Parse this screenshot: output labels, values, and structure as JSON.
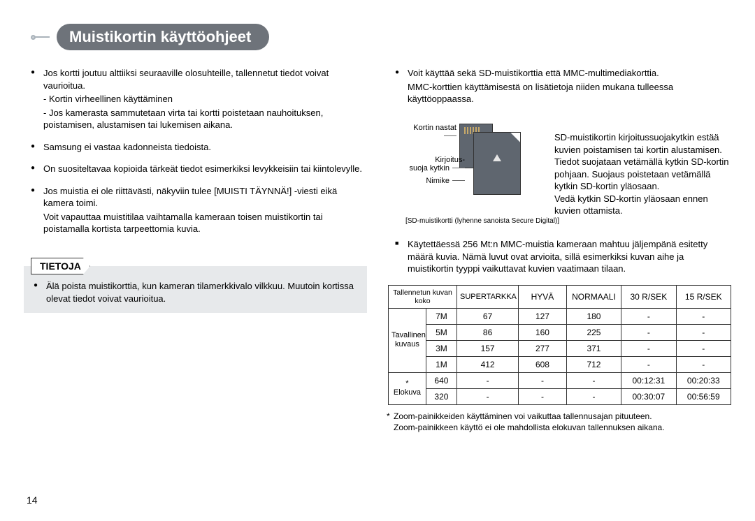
{
  "title": "Muistikortin käyttöohjeet",
  "left": {
    "b1": "Jos kortti joutuu alttiiksi seuraaville olosuhteille, tallennetut tiedot voivat vaurioitua.",
    "b1s1": "- Kortin virheellinen käyttäminen",
    "b1s2": "- Jos kamerasta sammutetaan virta tai kortti poistetaan nauhoituksen, poistamisen, alustamisen tai lukemisen aikana.",
    "b2": "Samsung ei vastaa kadonneista tiedoista.",
    "b3": "On suositeltavaa kopioida tärkeät tiedot esimerkiksi levykkeisiin tai kiintolevylle.",
    "b4a": "Jos muistia ei ole riittävästi, näkyviin tulee [MUISTI TÄYNNÄ!] -viesti eikä kamera toimi.",
    "b4b": "Voit vapauttaa muistitilaa vaihtamalla kameraan toisen muistikortin tai poistamalla kortista tarpeettomia kuvia."
  },
  "tietoja": {
    "label": "TIETOJA",
    "text": "Älä poista muistikorttia, kun kameran tilamerkkivalo vilkkuu. Muutoin kortissa olevat tiedot voivat vaurioitua."
  },
  "right_top": {
    "r1a": "Voit käyttää sekä SD-muistikorttia että MMC-multimediakorttia.",
    "r1b": "MMC-korttien käyttämisestä on lisätietoja niiden mukana tulleessa käyttöoppaassa."
  },
  "sd": {
    "label_pins": "Kortin nastat",
    "label_switch": "Kirjoitus-\nsuoja kytkin",
    "label_nimike": "Nimike",
    "caption": "[SD-muistikortti (lyhenne sanoista Secure Digital)]",
    "text": "SD-muistikortin kirjoitussuojakytkin estää kuvien poistamisen tai kortin alustamisen.\nTiedot suojataan vetämällä kytkin SD-kortin pohjaan. Suojaus poistetaan vetämällä kytkin SD-kortin yläosaan.\nVedä kytkin SD-kortin yläosaan ennen kuvien ottamista."
  },
  "mid": {
    "p": "Käytettäessä 256 Mt:n MMC-muistia kameraan mahtuu jäljempänä esitetty määrä kuvia. Nämä luvut ovat arvioita, sillä esimerkiksi kuvan aihe ja muistikortin tyyppi vaikuttavat kuvien vaatimaan tilaan."
  },
  "table": {
    "h_size": "Tallennetun kuvan koko",
    "h_super": "SUPERTARKKA",
    "h_hyva": "HYVÄ",
    "h_norm": "NORMAALI",
    "h_30": "30 R/SEK",
    "h_15": "15 R/SEK",
    "g_still": "Tavallinen kuvaus",
    "g_movie": "* Elokuva",
    "rows_still": [
      {
        "size": "7M",
        "c1": "67",
        "c2": "127",
        "c3": "180",
        "c4": "-",
        "c5": "-"
      },
      {
        "size": "5M",
        "c1": "86",
        "c2": "160",
        "c3": "225",
        "c4": "-",
        "c5": "-"
      },
      {
        "size": "3M",
        "c1": "157",
        "c2": "277",
        "c3": "371",
        "c4": "-",
        "c5": "-"
      },
      {
        "size": "1M",
        "c1": "412",
        "c2": "608",
        "c3": "712",
        "c4": "-",
        "c5": "-"
      }
    ],
    "rows_movie": [
      {
        "size": "640",
        "c1": "-",
        "c2": "-",
        "c3": "-",
        "c4": "00:12:31",
        "c5": "00:20:33"
      },
      {
        "size": "320",
        "c1": "-",
        "c2": "-",
        "c3": "-",
        "c4": "00:30:07",
        "c5": "00:56:59"
      }
    ]
  },
  "footnote": {
    "l1": "Zoom-painikkeiden käyttäminen voi vaikuttaa tallennusajan pituuteen.",
    "l2": "Zoom-painikkeen käyttö ei ole mahdollista elokuvan tallennuksen aikana."
  },
  "pagenum": "14"
}
